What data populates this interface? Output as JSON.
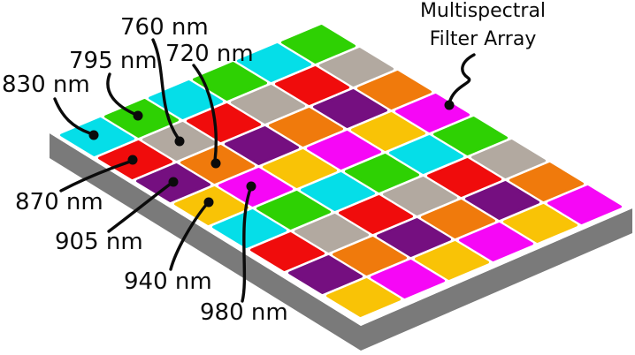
{
  "title": {
    "line1": "Multispectral",
    "line2": "Filter Array",
    "points_to_filter_color": "magenta"
  },
  "labels": [
    {
      "text": "830 nm",
      "wavelength_nm": 830,
      "filter_color": "cyan"
    },
    {
      "text": "795 nm",
      "wavelength_nm": 795,
      "filter_color": "green"
    },
    {
      "text": "760 nm",
      "wavelength_nm": 760,
      "filter_color": "gray"
    },
    {
      "text": "720 nm",
      "wavelength_nm": 720,
      "filter_color": "orange"
    },
    {
      "text": "870 nm",
      "wavelength_nm": 870,
      "filter_color": "red"
    },
    {
      "text": "905 nm",
      "wavelength_nm": 905,
      "filter_color": "purple"
    },
    {
      "text": "940 nm",
      "wavelength_nm": 940,
      "filter_color": "yellow"
    },
    {
      "text": "980 nm",
      "wavelength_nm": 980,
      "filter_color": "magenta"
    }
  ],
  "grid": {
    "rows": 8,
    "cols": 6,
    "pattern": [
      [
        "cyan",
        "green",
        "cyan",
        "green",
        "cyan",
        "green"
      ],
      [
        "red",
        "gray",
        "red",
        "gray",
        "red",
        "gray"
      ],
      [
        "purple",
        "orange",
        "purple",
        "orange",
        "purple",
        "orange"
      ],
      [
        "yellow",
        "magenta",
        "yellow",
        "magenta",
        "yellow",
        "magenta"
      ],
      [
        "cyan",
        "green",
        "cyan",
        "green",
        "cyan",
        "green"
      ],
      [
        "red",
        "gray",
        "red",
        "gray",
        "red",
        "gray"
      ],
      [
        "purple",
        "orange",
        "purple",
        "orange",
        "purple",
        "orange"
      ],
      [
        "yellow",
        "magenta",
        "yellow",
        "magenta",
        "yellow",
        "magenta"
      ]
    ]
  },
  "palette": {
    "cyan": "#05DEE8",
    "green": "#2ED103",
    "red": "#F00C0C",
    "gray": "#B2A9A0",
    "purple": "#750F80",
    "orange": "#F07A0C",
    "yellow": "#F9C306",
    "magenta": "#F607F6",
    "slab_side": "#7A7A7A",
    "slab_top": "#FFFFFF",
    "line": "#0B0B0B"
  }
}
